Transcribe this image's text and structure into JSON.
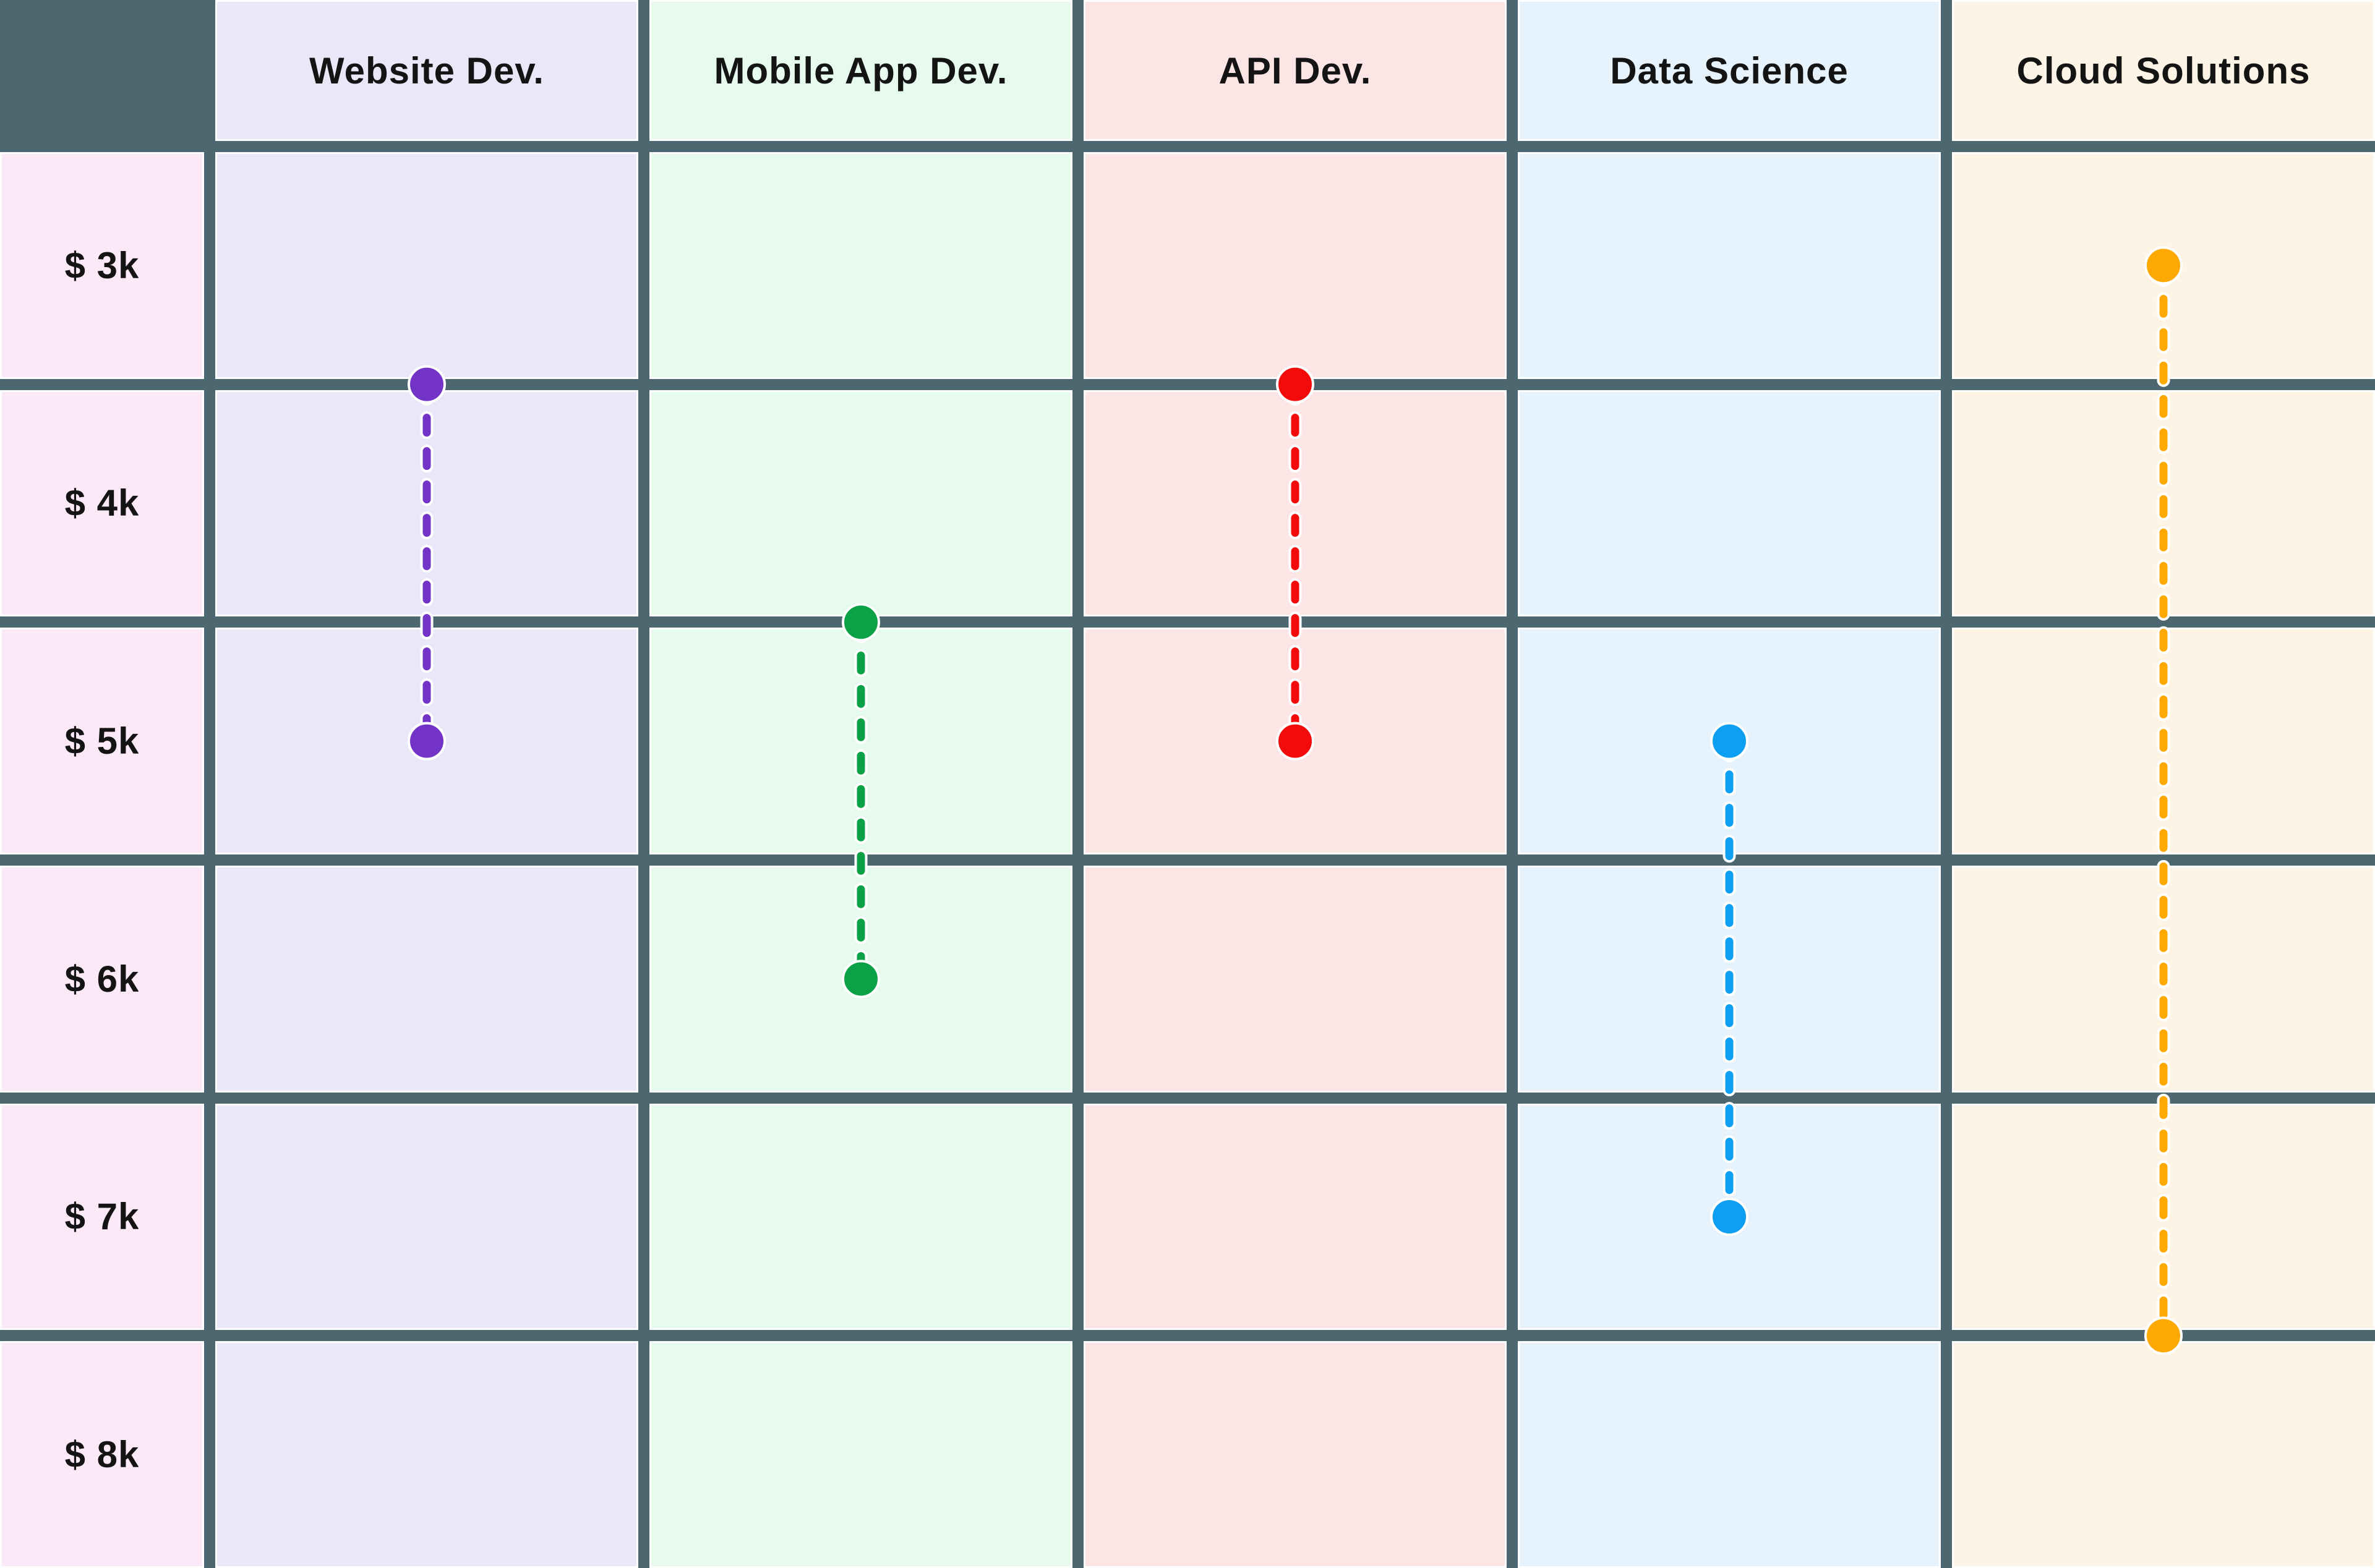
{
  "table": {
    "corner_label": "",
    "row_labels": [
      "$ 3k",
      "$ 4k",
      "$ 5k",
      "$ 6k",
      "$ 7k",
      "$ 8k"
    ],
    "column_headers": [
      "Website Dev.",
      "Mobile App Dev.",
      "API Dev.",
      "Data Science",
      "Cloud Solutions"
    ]
  },
  "colors": {
    "grid": "#4d6771",
    "cell_outline": "#ffffff",
    "label_column_bg": "#fce9f7",
    "text": "#141414"
  },
  "chart_data": {
    "type": "dumbbell-range",
    "orientation": "vertical",
    "title": "",
    "categories": [
      "Website Dev.",
      "Mobile App Dev.",
      "API Dev.",
      "Data Science",
      "Cloud Solutions"
    ],
    "y_axis": {
      "tick_labels": [
        "$ 3k",
        "$ 4k",
        "$ 5k",
        "$ 6k",
        "$ 7k",
        "$ 8k"
      ],
      "tick_values_k": [
        3,
        4,
        5,
        6,
        7,
        8
      ],
      "range_k": [
        2.5,
        8.5
      ],
      "grid": true,
      "legend_position": "none"
    },
    "series": [
      {
        "name": "Website Dev.",
        "min_k": 3.5,
        "max_k": 5.0,
        "color": "#7233c6",
        "column_bg": "#eae7f9"
      },
      {
        "name": "Mobile App Dev.",
        "min_k": 4.5,
        "max_k": 6.0,
        "color": "#0ba147",
        "column_bg": "#e6faee"
      },
      {
        "name": "API Dev.",
        "min_k": 3.5,
        "max_k": 5.0,
        "color": "#f30b0b",
        "column_bg": "#fce6e5"
      },
      {
        "name": "Data Science",
        "min_k": 5.0,
        "max_k": 7.0,
        "color": "#0da0f2",
        "column_bg": "#e6f3fd"
      },
      {
        "name": "Cloud Solutions",
        "min_k": 3.0,
        "max_k": 7.5,
        "color": "#fda902",
        "column_bg": "#fdf4e6"
      }
    ]
  }
}
